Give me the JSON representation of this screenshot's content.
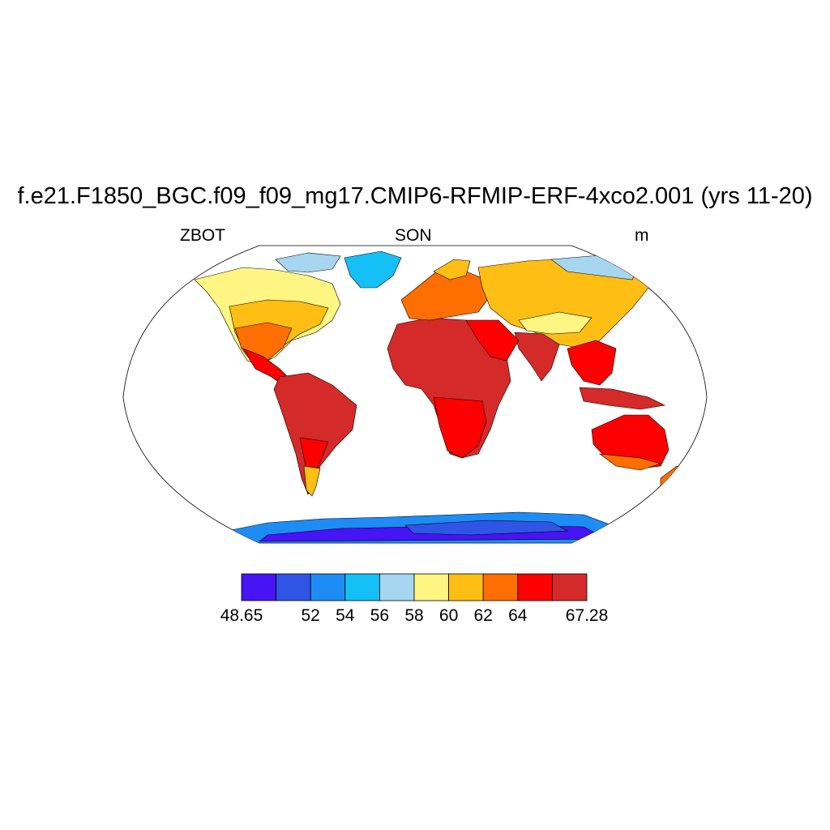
{
  "title": "f.e21.F1850_BGC.f09_f09_mg17.CMIP6-RFMIP-ERF-4xco2.001 (yrs 11-20)",
  "subtitle": {
    "left": "ZBOT",
    "center": "SON",
    "right": "m"
  },
  "colorbar": {
    "colors": [
      "#4614f5",
      "#2f55e6",
      "#1e8cf5",
      "#14c0f5",
      "#a6d6f0",
      "#fff582",
      "#ffbe14",
      "#ff6e00",
      "#ff0000",
      "#d42a2a"
    ],
    "labels": [
      "48.65",
      "52",
      "54",
      "56",
      "58",
      "60",
      "62",
      "64",
      "67.28"
    ]
  },
  "map": {
    "projection": "robinson",
    "land_outline": "black",
    "ocean": "white"
  }
}
